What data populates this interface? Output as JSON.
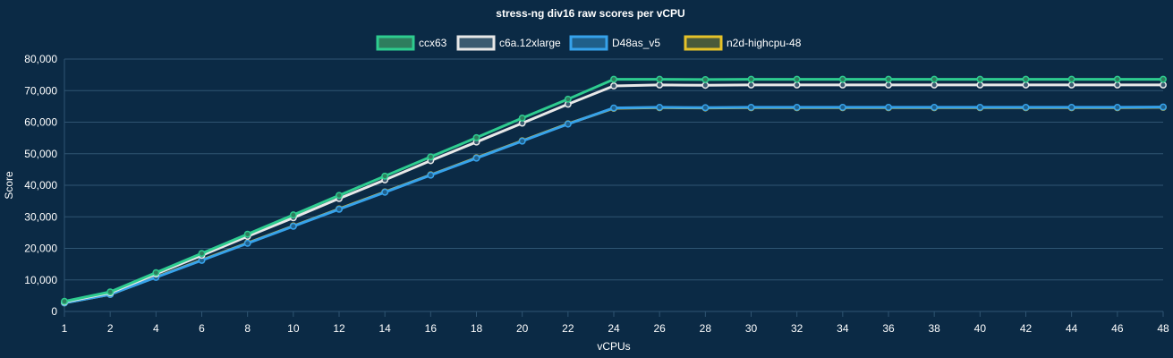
{
  "chart_data": {
    "type": "line",
    "title": "stress-ng div16 raw scores per vCPU",
    "xlabel": "vCPUs",
    "ylabel": "Score",
    "x": [
      1,
      2,
      4,
      6,
      8,
      10,
      12,
      14,
      16,
      18,
      20,
      22,
      24,
      26,
      28,
      30,
      32,
      34,
      36,
      38,
      40,
      42,
      44,
      46,
      48
    ],
    "ylim": [
      0,
      80000
    ],
    "yticks": [
      0,
      10000,
      20000,
      30000,
      40000,
      50000,
      60000,
      70000,
      80000
    ],
    "ytick_labels": [
      "0",
      "10,000",
      "20,000",
      "30,000",
      "40,000",
      "50,000",
      "60,000",
      "70,000",
      "80,000"
    ],
    "grid": true,
    "legend_position": "top",
    "series": [
      {
        "name": "ccx63",
        "color": "#2ecc8f",
        "fill": "#2e7d5e",
        "values": [
          3200,
          6200,
          12300,
          18400,
          24500,
          30600,
          36800,
          42900,
          49000,
          55100,
          61300,
          67300,
          73600,
          73600,
          73500,
          73600,
          73600,
          73600,
          73600,
          73600,
          73600,
          73600,
          73600,
          73600,
          73600
        ]
      },
      {
        "name": "c6a.12xlarge",
        "color": "#e8e8e8",
        "fill": "#3a5a70",
        "values": [
          3000,
          5900,
          11900,
          17800,
          23800,
          29700,
          35800,
          41700,
          47800,
          53700,
          59700,
          65700,
          71500,
          71800,
          71700,
          71800,
          71800,
          71800,
          71800,
          71800,
          71800,
          71800,
          71800,
          71800,
          71800
        ]
      },
      {
        "name": "D48as_v5",
        "color": "#36a2eb",
        "fill": "#1f5f8a",
        "values": [
          2700,
          5400,
          10800,
          16200,
          21600,
          27000,
          32400,
          37800,
          43200,
          48600,
          54000,
          59400,
          64500,
          64700,
          64600,
          64700,
          64700,
          64700,
          64700,
          64700,
          64700,
          64700,
          64700,
          64700,
          64800
        ]
      },
      {
        "name": "n2d-highcpu-48",
        "color": "#e6c229",
        "fill": "#4a5a3a",
        "values": [
          2700,
          5400,
          10900,
          16300,
          21700,
          27100,
          32500,
          37900,
          43300,
          48700,
          54100,
          59500,
          64400,
          64600,
          64500,
          64600,
          64600,
          64600,
          64600,
          64600,
          64600,
          64600,
          64600,
          64600,
          64700
        ]
      }
    ]
  }
}
